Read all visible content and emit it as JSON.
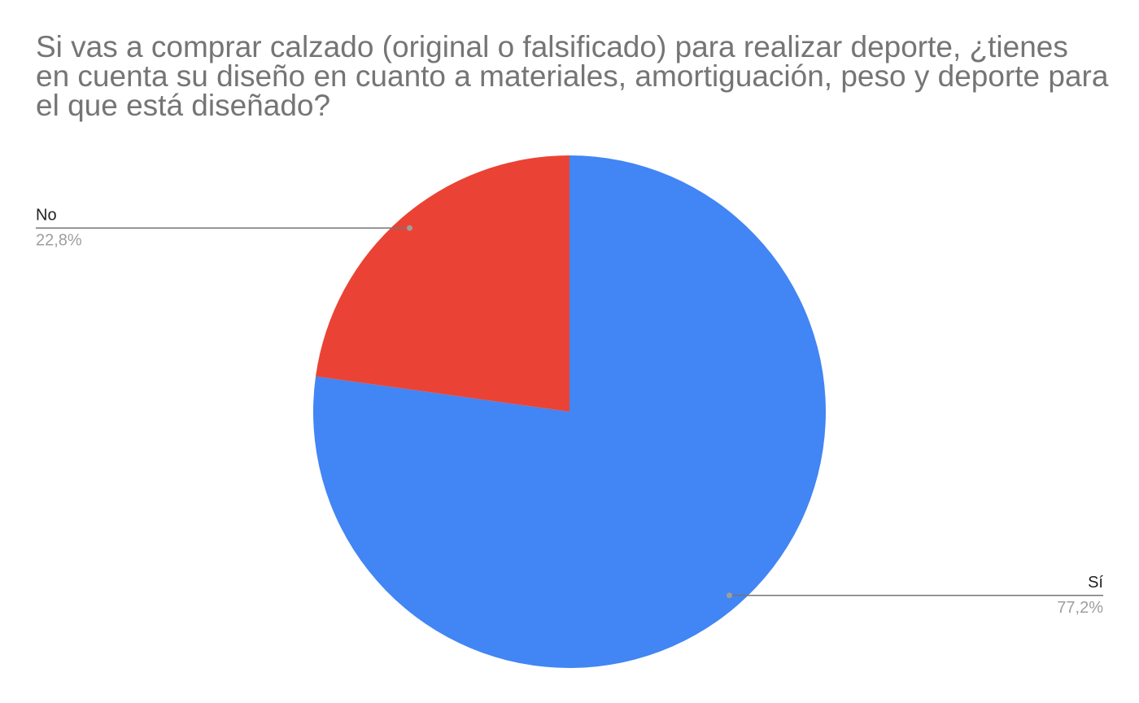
{
  "chart_data": {
    "type": "pie",
    "title": "Si vas a comprar calzado (original o falsificado) para realizar deporte, ¿tienes en cuenta su diseño en cuanto a materiales, amortiguación, peso y deporte para el que está diseñado?",
    "categories": [
      "Sí",
      "No"
    ],
    "values": [
      77.2,
      22.8
    ],
    "value_labels": [
      "77,2%",
      "22,8%"
    ],
    "colors": [
      "#4285f4",
      "#ea4335"
    ]
  }
}
